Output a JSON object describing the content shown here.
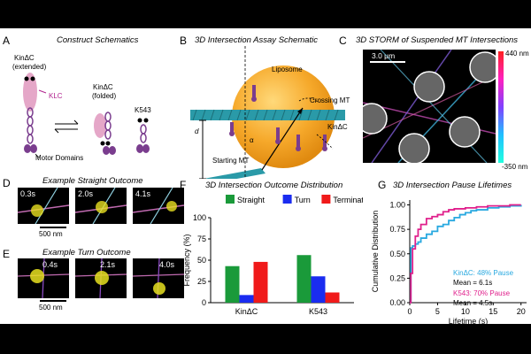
{
  "panels": {
    "A": {
      "letter": "A",
      "title": "Construct Schematics",
      "kin_ext_l1": "KinΔC",
      "kin_ext_l2": "(extended)",
      "klc": "KLC",
      "kin_fold_l1": "KinΔC",
      "kin_fold_l2": "(folded)",
      "k543": "K543",
      "motor": "Motor Domains"
    },
    "B": {
      "letter": "B",
      "title": "3D Intersection Assay Schematic",
      "liposome": "Liposome",
      "crossing": "Crossing MT",
      "kin": "KinΔC",
      "starting": "Starting MT",
      "d": "d",
      "alpha": "α"
    },
    "C": {
      "letter": "C",
      "title": "3D STORM of Suspended MT Intersections",
      "scale": "3.0 μm",
      "cmax": "440 nm",
      "cmin": "-350 nm"
    },
    "D": {
      "letter": "D",
      "title": "Example Straight Outcome",
      "times": [
        "0.3s",
        "2.0s",
        "4.1s"
      ],
      "scale": "500 nm"
    },
    "E": {
      "letter": "E",
      "title": "Example Turn Outcome",
      "times": [
        "0.4s",
        "2.1s",
        "4.0s"
      ],
      "scale": "500 nm"
    },
    "F": {
      "letter": "F",
      "title": "3D Intersection Outcome Distribution"
    },
    "G": {
      "letter": "G",
      "title": "3D Intersection Pause Lifetimes",
      "kin_line1": "KinΔC: 48% Pause",
      "kin_line2": "Mean = 6.1s",
      "k_line1": "K543: 70% Pause",
      "k_line2": "Mean = 4.5s"
    }
  },
  "chart_data": [
    {
      "type": "bar",
      "panel": "F",
      "title": "3D Intersection Outcome Distribution",
      "ylabel": "Frequency (%)",
      "xlabel": "",
      "categories": [
        "KinΔC",
        "K543"
      ],
      "series": [
        {
          "name": "Straight",
          "color": "#1a9a3a",
          "values": [
            43,
            56
          ]
        },
        {
          "name": "Turn",
          "color": "#1a2cf0",
          "values": [
            9,
            31
          ]
        },
        {
          "name": "Terminate",
          "color": "#f01a1a",
          "values": [
            48,
            12
          ]
        }
      ],
      "ylim": [
        0,
        100
      ],
      "yticks": [
        0,
        25,
        50,
        75,
        100
      ],
      "legend": "top"
    },
    {
      "type": "line",
      "panel": "G",
      "title": "3D Intersection Pause Lifetimes",
      "xlabel": "Lifetime (s)",
      "ylabel": "Cumulative Distribution",
      "xlim": [
        0,
        21
      ],
      "ylim": [
        0,
        1.05
      ],
      "xticks": [
        0,
        5,
        10,
        15,
        20
      ],
      "yticks": [
        0.0,
        0.25,
        0.5,
        0.75,
        1.0
      ],
      "series": [
        {
          "name": "KinΔC",
          "color": "#29a9e0",
          "x": [
            0,
            0.2,
            0.5,
            1,
            1.5,
            2,
            3,
            4,
            5,
            6,
            7,
            8,
            9,
            10,
            11,
            12,
            14,
            16,
            18,
            20
          ],
          "y": [
            0,
            0.56,
            0.58,
            0.6,
            0.62,
            0.66,
            0.7,
            0.73,
            0.78,
            0.8,
            0.84,
            0.87,
            0.9,
            0.92,
            0.94,
            0.95,
            0.97,
            0.98,
            0.99,
            1.0
          ]
        },
        {
          "name": "K543",
          "color": "#e0208c",
          "x": [
            0,
            0.2,
            0.5,
            1,
            1.5,
            2,
            3,
            4,
            5,
            6,
            7,
            8,
            10,
            12,
            14,
            16,
            18,
            20
          ],
          "y": [
            0,
            0.3,
            0.55,
            0.68,
            0.75,
            0.8,
            0.86,
            0.88,
            0.9,
            0.93,
            0.95,
            0.96,
            0.97,
            0.98,
            0.99,
            0.99,
            1.0,
            1.0
          ]
        }
      ]
    }
  ]
}
